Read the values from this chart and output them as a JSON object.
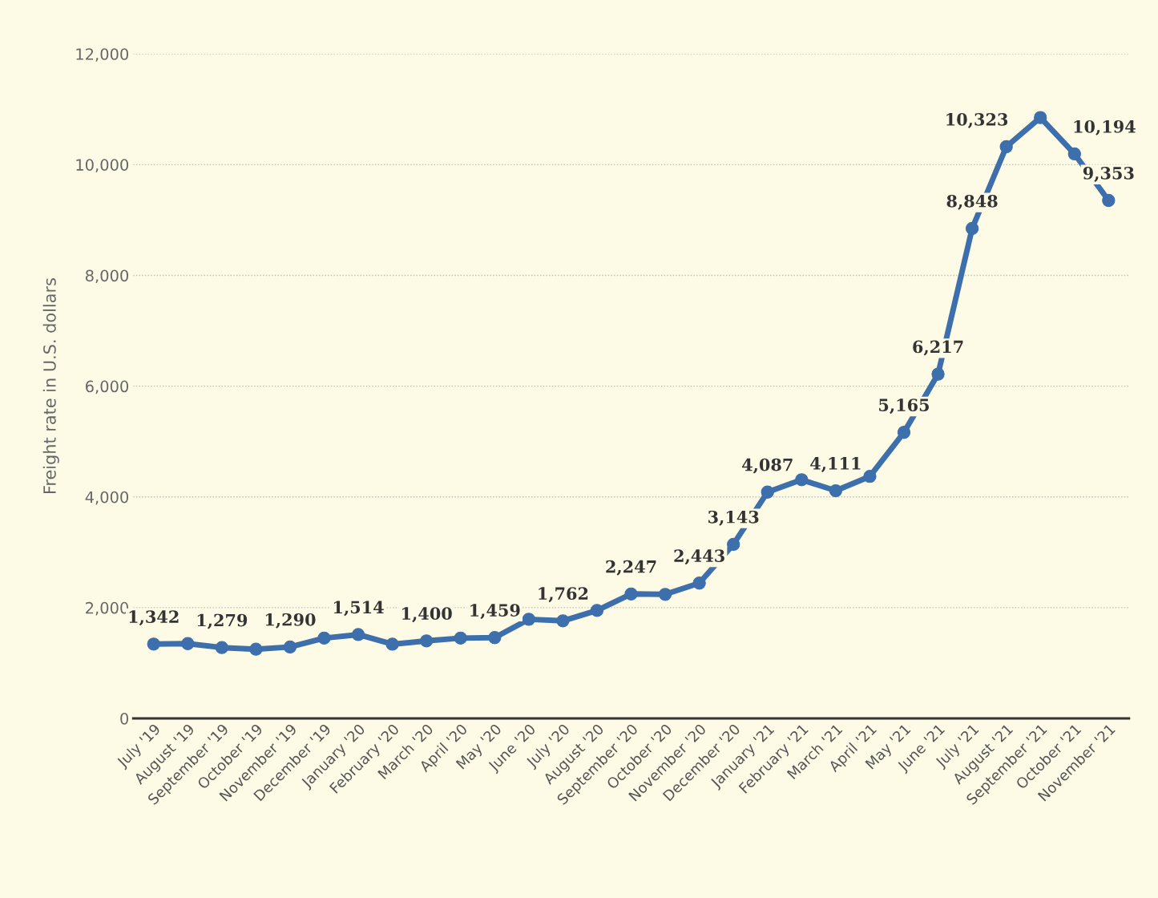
{
  "chart_data": {
    "type": "line",
    "ylabel": "Freight rate in U.S. dollars",
    "categories": [
      "July '19",
      "August '19",
      "September '19",
      "October '19",
      "November '19",
      "December '19",
      "January '20",
      "February '20",
      "March '20",
      "April '20",
      "May '20",
      "June '20",
      "July '20",
      "August '20",
      "September '20",
      "October '20",
      "November '20",
      "December '20",
      "January '21",
      "February '21",
      "March '21",
      "April '21",
      "May '21",
      "June '21",
      "July '21",
      "August '21",
      "September '21",
      "October '21",
      "November '21"
    ],
    "series": [
      {
        "color": "#3d6fac",
        "values": [
          1342,
          1350,
          1279,
          1250,
          1290,
          1450,
          1514,
          1340,
          1400,
          1450,
          1459,
          1790,
          1762,
          1950,
          2247,
          2240,
          2443,
          3143,
          4087,
          4310,
          4111,
          4370,
          5165,
          6217,
          8848,
          10323,
          10850,
          10194,
          9353
        ],
        "value_labels": [
          "1,342",
          null,
          "1,279",
          null,
          "1,290",
          null,
          "1,514",
          null,
          "1,400",
          null,
          "1,459",
          null,
          "1,762",
          null,
          "2,247",
          null,
          "2,443",
          "3,143",
          "4,087",
          null,
          "4,111",
          null,
          "5,165",
          "6,217",
          "8,848",
          "10,323",
          null,
          "10,194",
          "9,353"
        ]
      }
    ],
    "ylim": [
      0,
      12000
    ],
    "yticks": [
      0,
      {
        "value": 2000,
        "label": "2,000"
      },
      {
        "value": 4000,
        "label": "4,000"
      },
      {
        "value": 6000,
        "label": "6,000"
      },
      {
        "value": 8000,
        "label": "8,000"
      },
      {
        "value": 10000,
        "label": "10,000"
      },
      {
        "value": 12000,
        "label": "12,000"
      }
    ],
    "grid": "y",
    "marker": "circle",
    "line_style": "solid"
  }
}
